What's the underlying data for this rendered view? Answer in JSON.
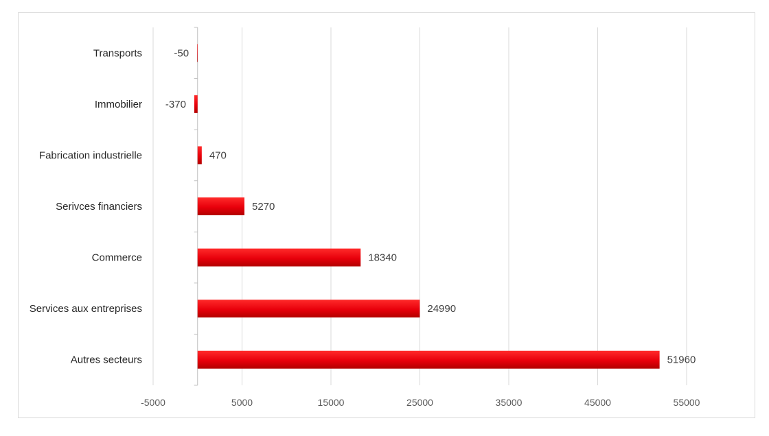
{
  "chart_data": {
    "type": "bar",
    "orientation": "horizontal",
    "title": "",
    "xlabel": "",
    "ylabel": "",
    "categories": [
      "Transports",
      "Immobilier",
      "Fabrication industrielle",
      "Serivces financiers",
      "Commerce",
      "Services aux entreprises",
      "Autres secteurs"
    ],
    "values": [
      -50,
      -370,
      470,
      5270,
      18340,
      24990,
      51960
    ],
    "data_labels": [
      "-50",
      "-370",
      "470",
      "5270",
      "18340",
      "24990",
      "51960"
    ],
    "xticks": [
      -5000,
      5000,
      15000,
      25000,
      35000,
      45000,
      55000
    ],
    "xtick_labels": [
      "-5000",
      "5000",
      "15000",
      "25000",
      "35000",
      "45000",
      "55000"
    ],
    "xlim": [
      -5000,
      55000
    ],
    "grid": "vertical",
    "legend": "none",
    "colors": {
      "bar": "#e8000b",
      "bar_highlight": "#ff1a1a",
      "bar_shadow": "#b30000",
      "grid": "#d9d9d9",
      "axis": "#bfbfbf"
    }
  }
}
